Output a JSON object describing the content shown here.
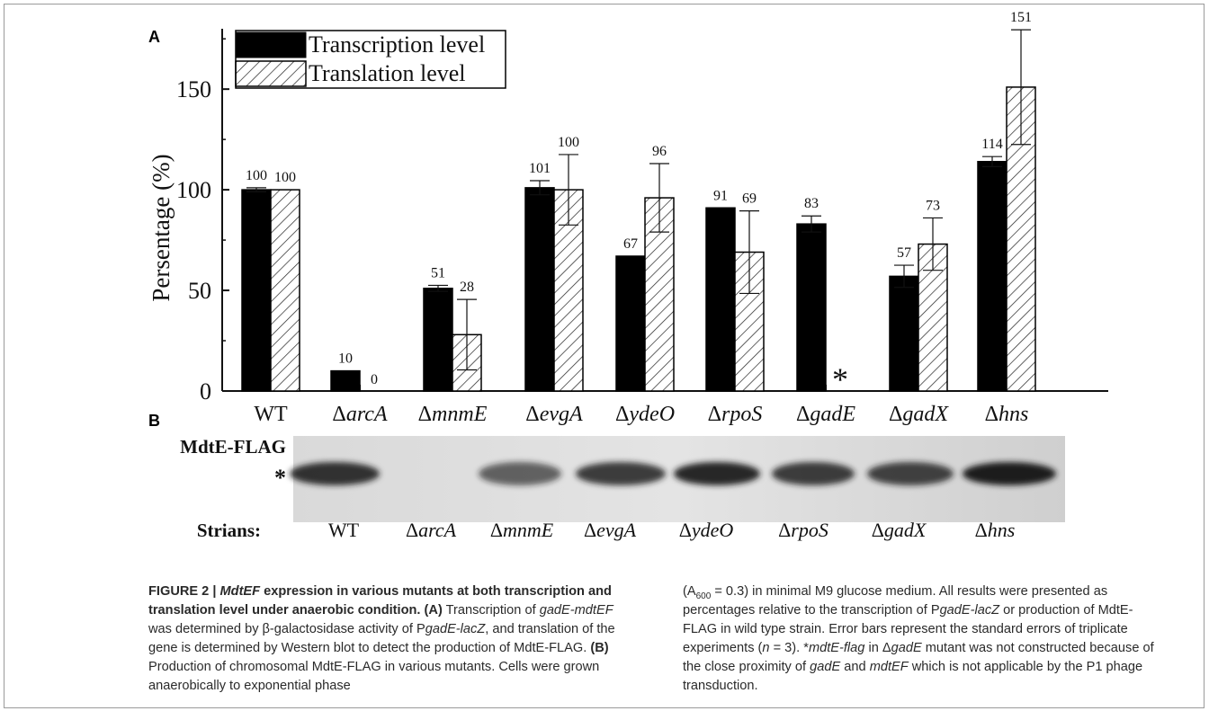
{
  "figure": {
    "panel_a_label": "A",
    "panel_b_label": "B"
  },
  "chart_data": {
    "type": "bar",
    "categories": [
      "WT",
      "ΔarcA",
      "ΔmnmE",
      "ΔevgA",
      "ΔydeO",
      "ΔrpoS",
      "ΔgadE",
      "ΔgadX",
      "Δhns"
    ],
    "category_prefix": "Δ",
    "category_names": [
      "WT",
      "arcA",
      "mnmE",
      "evgA",
      "ydeO",
      "rpoS",
      "gadE",
      "gadX",
      "hns"
    ],
    "category_italic": [
      false,
      true,
      true,
      true,
      true,
      true,
      true,
      true,
      true
    ],
    "series": [
      {
        "name": "Transcription level",
        "fill": "solid",
        "values": [
          100,
          10,
          51,
          101,
          67,
          91,
          83,
          57,
          114
        ],
        "errors": [
          1,
          0,
          1.5,
          3.5,
          0,
          0,
          4,
          5.5,
          2.5
        ],
        "labels": [
          "100",
          "10",
          "51",
          "101",
          "67",
          "91",
          "83",
          "57",
          "114"
        ]
      },
      {
        "name": "Translation level",
        "fill": "hatched",
        "values": [
          100,
          0,
          28,
          100,
          96,
          69,
          0,
          73,
          151
        ],
        "errors": [
          0,
          0,
          17.5,
          17.5,
          17,
          20.5,
          0,
          13,
          28.5
        ],
        "labels": [
          "100",
          "0",
          "28",
          "100",
          "96",
          "69",
          "",
          "73",
          "151"
        ]
      }
    ],
    "missing_marker": {
      "category_index": 6,
      "series_index": 1,
      "symbol": "*"
    },
    "ylabel": "Persentage (%)",
    "xlabel": "",
    "ylim": [
      0,
      180
    ],
    "yticks": [
      0,
      50,
      100,
      150
    ],
    "legend_position": "top-left",
    "colors": {
      "bar": "#000000",
      "hatch": "#222222",
      "axis": "#111111"
    }
  },
  "blot": {
    "band_label": "MdtE-FLAG",
    "band_marker": "*",
    "strains_label": "Strians:",
    "strains": [
      "WT",
      "ΔarcA",
      "ΔmnmE",
      "ΔevgA",
      "ΔydeO",
      "ΔrpoS",
      "ΔgadX",
      "Δhns"
    ],
    "band_intensity": [
      0.9,
      0,
      0.65,
      0.85,
      0.95,
      0.85,
      0.8,
      1.0
    ]
  },
  "caption": {
    "title": "FIGURE 2 | MdtEF expression in various mutants at both transcription and translation level under anaerobic condition.",
    "left_text": "(A) Transcription of gadE-mdtEF was determined by β-galactosidase activity of PgadE-lacZ, and translation of the gene is determined by Western blot to detect the production of MdtE-FLAG. (B) Production of chromosomal MdtE-FLAG in various mutants. Cells were grown anaerobically to exponential phase",
    "right_text": "(A600 = 0.3) in minimal M9 glucose medium. All results were presented as percentages relative to the transcription of PgadE-lacZ or production of MdtE-FLAG in wild type strain. Error bars represent the standard errors of triplicate experiments (n = 3). *mdtE-flag in ΔgadE mutant was not constructed because of the close proximity of gadE and mdtEF which is not applicable by the P1 phage transduction.",
    "fig_no": "FIGURE 2 | ",
    "title_gene": "MdtEF",
    "title_rest": " expression in various mutants at both transcription and translation level under anaerobic condition.",
    "A": "(A)",
    "B": "(B)",
    "t1": " Transcription of ",
    "t_gene1": "gadE-mdtEF",
    "t2": " was determined by β-galactosidase activity of P",
    "t_gene2": "gadE-lacZ",
    "t3": ", and translation of the gene is determined by Western blot to detect the production of MdtE-FLAG. ",
    "t4": " Production of chromosomal MdtE-FLAG in various mutants. Cells were grown anaerobically to exponential phase",
    "r1": "(A",
    "r_sub": "600",
    "r2": " = 0.3) in minimal M9 glucose medium. All results were presented as percentages relative to the transcription of P",
    "r_gene1": "gadE-lacZ",
    "r3": " or production of MdtE-FLAG in wild type strain. Error bars represent the standard errors of triplicate experiments (",
    "r_n": "n",
    "r4": " = 3). *",
    "r_gene2": "mdtE-flag",
    "r5": " in Δ",
    "r_gene3": "gadE",
    "r6": " mutant was not constructed because of the close proximity of ",
    "r_gene4": "gadE",
    "r7": " and ",
    "r_gene5": "mdtEF",
    "r8": " which is not applicable by the P1 phage transduction."
  }
}
